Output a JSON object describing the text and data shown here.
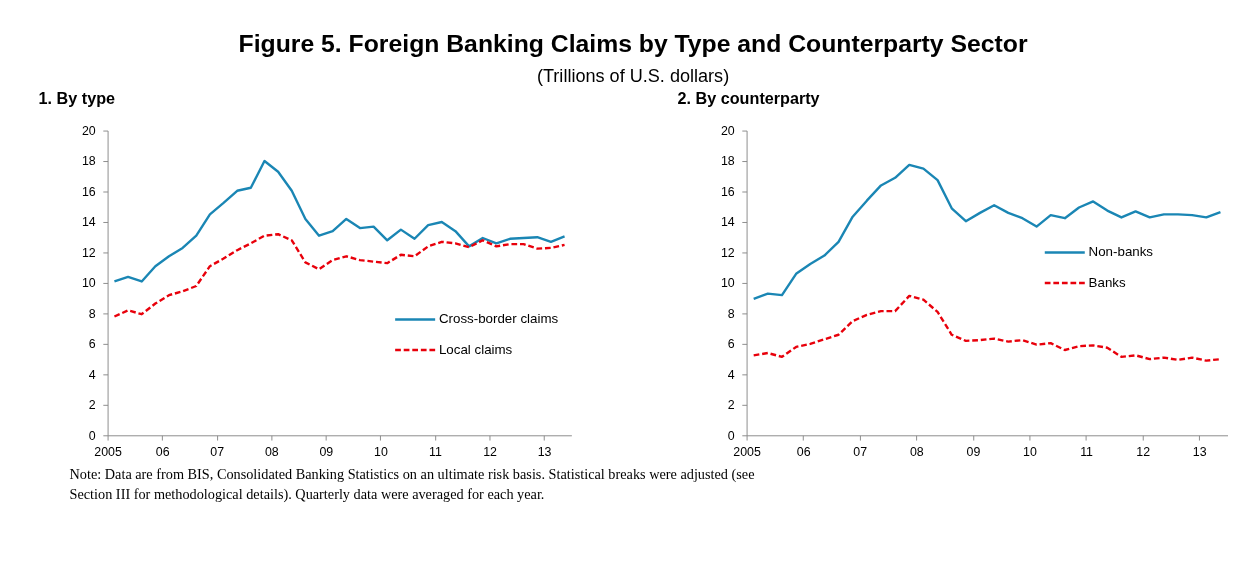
{
  "chart_data": [
    {
      "type": "line",
      "title": "1. By type",
      "annotations": [
        "Figure 5. Foreign Banking Claims by Type and Counterparty Sector",
        "(Trillions of U.S. dollars)",
        "Note: Data are from BIS, Consolidated Banking Statistics on an ultimate risk basis. Statistical breaks were adjusted (see Section III for methodological details). Quarterly data were averaged for each year."
      ],
      "x": [
        2005.125,
        2005.375,
        2005.625,
        2005.875,
        2006.125,
        2006.375,
        2006.625,
        2006.875,
        2007.125,
        2007.375,
        2007.625,
        2007.875,
        2008.125,
        2008.375,
        2008.625,
        2008.875,
        2009.125,
        2009.375,
        2009.625,
        2009.875,
        2010.125,
        2010.375,
        2010.625,
        2010.875,
        2011.125,
        2011.375,
        2011.625,
        2011.875,
        2012.125,
        2012.375,
        2012.625,
        2012.875,
        2013.125,
        2013.375
      ],
      "series": [
        {
          "name": "Cross-border claims",
          "color": "#1a86b4",
          "line_style": "solid",
          "values": [
            10.1,
            10.4,
            10.1,
            11.1,
            11.75,
            12.3,
            13.1,
            14.5,
            15.25,
            16.05,
            16.25,
            18.0,
            17.3,
            16.05,
            14.2,
            13.1,
            13.4,
            14.2,
            13.6,
            13.7,
            12.8,
            13.5,
            12.9,
            13.8,
            14.0,
            13.4,
            12.4,
            12.95,
            12.6,
            12.9,
            12.95,
            13.0,
            12.7,
            13.05
          ]
        },
        {
          "name": "Local claims",
          "color": "#e8000b",
          "line_style": "dashed",
          "values": [
            7.8,
            8.2,
            7.95,
            8.65,
            9.2,
            9.45,
            9.8,
            11.1,
            11.6,
            12.15,
            12.6,
            13.1,
            13.2,
            12.8,
            11.35,
            10.9,
            11.5,
            11.75,
            11.5,
            11.4,
            11.3,
            11.85,
            11.75,
            12.4,
            12.7,
            12.6,
            12.35,
            12.8,
            12.4,
            12.55,
            12.55,
            12.25,
            12.3,
            12.5
          ]
        }
      ],
      "xlim": [
        2005,
        2013.5
      ],
      "xticks": [
        {
          "value": 2005,
          "label": "2005"
        },
        {
          "value": 2006,
          "label": "06"
        },
        {
          "value": 2007,
          "label": "07"
        },
        {
          "value": 2008,
          "label": "08"
        },
        {
          "value": 2009,
          "label": "09"
        },
        {
          "value": 2010,
          "label": "10"
        },
        {
          "value": 2011,
          "label": "11"
        },
        {
          "value": 2012,
          "label": "12"
        },
        {
          "value": 2013,
          "label": "13"
        }
      ],
      "ylim": [
        0,
        20
      ],
      "yticks": [
        0,
        2,
        4,
        6,
        8,
        10,
        12,
        14,
        16,
        18,
        20
      ],
      "grid": false,
      "legend": "bottom right",
      "marker": "none"
    },
    {
      "type": "line",
      "title": "2. By counterparty",
      "x": [
        2005.125,
        2005.375,
        2005.625,
        2005.875,
        2006.125,
        2006.375,
        2006.625,
        2006.875,
        2007.125,
        2007.375,
        2007.625,
        2007.875,
        2008.125,
        2008.375,
        2008.625,
        2008.875,
        2009.125,
        2009.375,
        2009.625,
        2009.875,
        2010.125,
        2010.375,
        2010.625,
        2010.875,
        2011.125,
        2011.375,
        2011.625,
        2011.875,
        2012.125,
        2012.375,
        2012.625,
        2012.875,
        2013.125,
        2013.375
      ],
      "series": [
        {
          "name": "Non-banks",
          "color": "#1a86b4",
          "line_style": "solid",
          "values": [
            8.95,
            9.3,
            9.2,
            10.6,
            11.25,
            11.8,
            12.7,
            14.35,
            15.4,
            16.4,
            16.9,
            17.75,
            17.5,
            16.75,
            14.9,
            14.05,
            14.6,
            15.1,
            14.6,
            14.25,
            13.7,
            14.45,
            14.25,
            14.95,
            15.35,
            14.75,
            14.3,
            14.7,
            14.3,
            14.5,
            14.5,
            14.45,
            14.3,
            14.65
          ]
        },
        {
          "name": "Banks",
          "color": "#e8000b",
          "line_style": "dashed",
          "values": [
            5.25,
            5.4,
            5.15,
            5.8,
            6.0,
            6.3,
            6.6,
            7.5,
            7.9,
            8.15,
            8.15,
            9.15,
            8.9,
            8.1,
            6.6,
            6.2,
            6.25,
            6.35,
            6.15,
            6.25,
            5.95,
            6.05,
            5.6,
            5.85,
            5.9,
            5.75,
            5.15,
            5.25,
            5.0,
            5.1,
            4.95,
            5.1,
            4.9,
            5.0
          ]
        }
      ],
      "xlim": [
        2005,
        2013.5
      ],
      "xticks": [
        {
          "value": 2005,
          "label": "2005"
        },
        {
          "value": 2006,
          "label": "06"
        },
        {
          "value": 2007,
          "label": "07"
        },
        {
          "value": 2008,
          "label": "08"
        },
        {
          "value": 2009,
          "label": "09"
        },
        {
          "value": 2010,
          "label": "10"
        },
        {
          "value": 2011,
          "label": "11"
        },
        {
          "value": 2012,
          "label": "12"
        },
        {
          "value": 2013,
          "label": "13"
        }
      ],
      "ylim": [
        0,
        20
      ],
      "yticks": [
        0,
        2,
        4,
        6,
        8,
        10,
        12,
        14,
        16,
        18,
        20
      ],
      "grid": false,
      "legend": "right",
      "marker": "none"
    }
  ]
}
